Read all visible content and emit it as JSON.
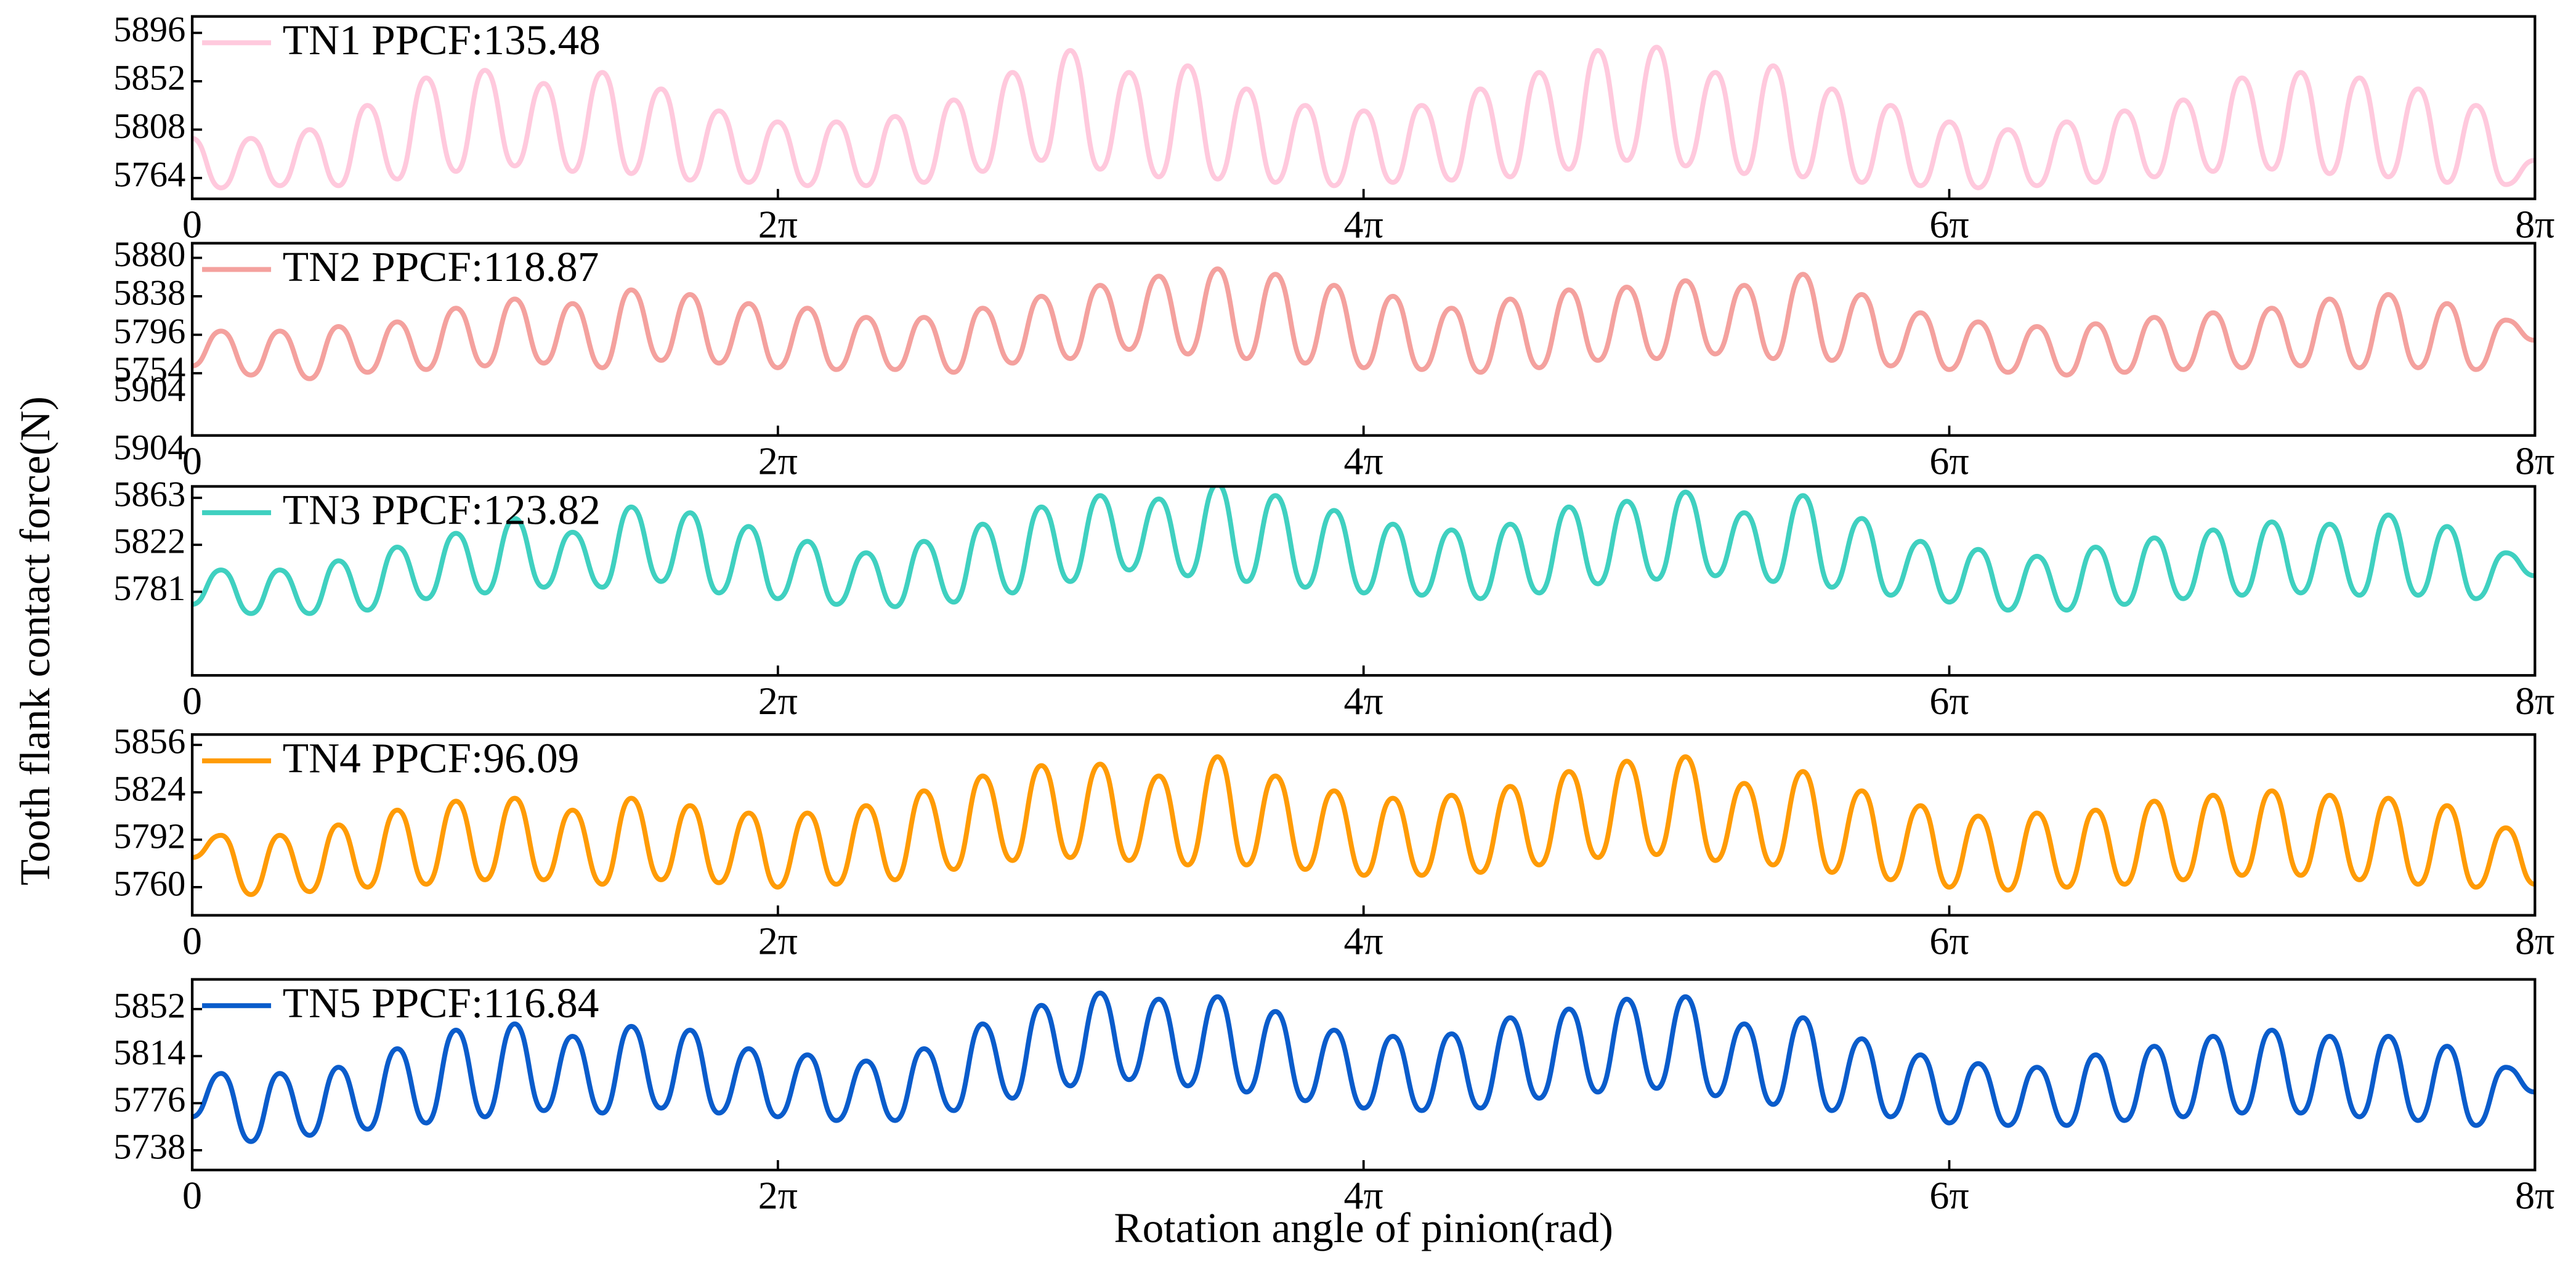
{
  "figure": {
    "ylabel": "Tooth flank contact force(N)",
    "xlabel": "Rotation angle of pinion(rad)"
  },
  "chart_data": [
    {
      "type": "line",
      "x": [
        0,
        0.31,
        0.63,
        0.94,
        1.26,
        1.57,
        1.88,
        2.2,
        2.51,
        2.83,
        3.14,
        3.46,
        3.77,
        4.08,
        4.4,
        4.71,
        5.03,
        5.34,
        5.65,
        5.97,
        6.28,
        6.6,
        6.91,
        7.23,
        7.54,
        7.85,
        8.17,
        8.48,
        8.8,
        9.11,
        9.42,
        9.74,
        10.05,
        10.37,
        10.68,
        11.0,
        11.31,
        11.62,
        11.94,
        12.25,
        12.57,
        12.88,
        13.19,
        13.51,
        13.82,
        14.14,
        14.45,
        14.77,
        15.08,
        15.39,
        15.71,
        16.02,
        16.34,
        16.65,
        16.96,
        17.28,
        17.59,
        17.91,
        18.22,
        18.54,
        18.85,
        19.16,
        19.48,
        19.79,
        20.11,
        20.42,
        20.73,
        21.05,
        21.36,
        21.68,
        21.99,
        22.31,
        22.62,
        22.93,
        23.25,
        23.56,
        23.88,
        24.19,
        24.5,
        24.82,
        25.13
      ],
      "series": [
        {
          "name": "TN1 PPCF:135.48",
          "color": "#ffc9dd",
          "values": [
            5800,
            5755,
            5800,
            5757,
            5808,
            5757,
            5830,
            5763,
            5855,
            5770,
            5862,
            5775,
            5850,
            5770,
            5860,
            5768,
            5845,
            5762,
            5825,
            5760,
            5815,
            5757,
            5815,
            5757,
            5820,
            5760,
            5835,
            5770,
            5860,
            5780,
            5880,
            5772,
            5860,
            5765,
            5866,
            5763,
            5845,
            5760,
            5830,
            5757,
            5825,
            5760,
            5830,
            5762,
            5845,
            5765,
            5860,
            5772,
            5880,
            5780,
            5883,
            5775,
            5860,
            5768,
            5866,
            5765,
            5845,
            5760,
            5830,
            5757,
            5815,
            5755,
            5808,
            5757,
            5815,
            5760,
            5825,
            5765,
            5835,
            5770,
            5855,
            5772,
            5860,
            5768,
            5855,
            5765,
            5845,
            5760,
            5830,
            5758,
            5780
          ]
        }
      ],
      "xlim": [
        0,
        25.1327
      ],
      "xticks": [
        {
          "value": 0,
          "label": "0"
        },
        {
          "value": 6.2832,
          "label": "2π"
        },
        {
          "value": 12.5664,
          "label": "4π"
        },
        {
          "value": 18.8496,
          "label": "6π"
        },
        {
          "value": 25.1327,
          "label": "8π"
        }
      ],
      "ylim": [
        5745,
        5911
      ],
      "yticks": [
        5764,
        5808,
        5852,
        5896
      ]
    },
    {
      "type": "line",
      "x": [
        0,
        0.31,
        0.63,
        0.94,
        1.26,
        1.57,
        1.88,
        2.2,
        2.51,
        2.83,
        3.14,
        3.46,
        3.77,
        4.08,
        4.4,
        4.71,
        5.03,
        5.34,
        5.65,
        5.97,
        6.28,
        6.6,
        6.91,
        7.23,
        7.54,
        7.85,
        8.17,
        8.48,
        8.8,
        9.11,
        9.42,
        9.74,
        10.05,
        10.37,
        10.68,
        11.0,
        11.31,
        11.62,
        11.94,
        12.25,
        12.57,
        12.88,
        13.19,
        13.51,
        13.82,
        14.14,
        14.45,
        14.77,
        15.08,
        15.39,
        15.71,
        16.02,
        16.34,
        16.65,
        16.96,
        17.28,
        17.59,
        17.91,
        18.22,
        18.54,
        18.85,
        19.16,
        19.48,
        19.79,
        20.11,
        20.42,
        20.73,
        21.05,
        21.36,
        21.68,
        21.99,
        22.31,
        22.62,
        22.93,
        23.25,
        23.56,
        23.88,
        24.19,
        24.5,
        24.82,
        25.13
      ],
      "series": [
        {
          "name": "TN2 PPCF:118.87",
          "color": "#f4a19e",
          "values": [
            5762,
            5800,
            5752,
            5800,
            5748,
            5805,
            5755,
            5810,
            5758,
            5825,
            5762,
            5835,
            5765,
            5830,
            5760,
            5845,
            5768,
            5840,
            5765,
            5830,
            5760,
            5825,
            5758,
            5815,
            5758,
            5815,
            5755,
            5825,
            5765,
            5838,
            5770,
            5850,
            5780,
            5860,
            5775,
            5868,
            5770,
            5862,
            5765,
            5850,
            5760,
            5838,
            5758,
            5825,
            5755,
            5835,
            5760,
            5845,
            5768,
            5848,
            5770,
            5855,
            5775,
            5850,
            5770,
            5862,
            5768,
            5840,
            5762,
            5820,
            5758,
            5810,
            5755,
            5805,
            5752,
            5808,
            5755,
            5815,
            5758,
            5820,
            5760,
            5825,
            5762,
            5835,
            5760,
            5840,
            5760,
            5830,
            5758,
            5812,
            5790
          ]
        }
      ],
      "xlim": [
        0,
        25.1327
      ],
      "xticks": [
        {
          "value": 0,
          "label": "0"
        },
        {
          "value": 6.2832,
          "label": "2π"
        },
        {
          "value": 12.5664,
          "label": "4π"
        },
        {
          "value": 18.8496,
          "label": "6π"
        },
        {
          "value": 25.1327,
          "label": "8π"
        }
      ],
      "ylim": [
        5686,
        5896
      ],
      "yticks": [
        5754,
        5796,
        5838,
        5880
      ],
      "annotation": "5904"
    },
    {
      "type": "line",
      "x": [
        0,
        0.31,
        0.63,
        0.94,
        1.26,
        1.57,
        1.88,
        2.2,
        2.51,
        2.83,
        3.14,
        3.46,
        3.77,
        4.08,
        4.4,
        4.71,
        5.03,
        5.34,
        5.65,
        5.97,
        6.28,
        6.6,
        6.91,
        7.23,
        7.54,
        7.85,
        8.17,
        8.48,
        8.8,
        9.11,
        9.42,
        9.74,
        10.05,
        10.37,
        10.68,
        11.0,
        11.31,
        11.62,
        11.94,
        12.25,
        12.57,
        12.88,
        13.19,
        13.51,
        13.82,
        14.14,
        14.45,
        14.77,
        15.08,
        15.39,
        15.71,
        16.02,
        16.34,
        16.65,
        16.96,
        17.28,
        17.59,
        17.91,
        18.22,
        18.54,
        18.85,
        19.16,
        19.48,
        19.79,
        20.11,
        20.42,
        20.73,
        21.05,
        21.36,
        21.68,
        21.99,
        22.31,
        22.62,
        22.93,
        23.25,
        23.56,
        23.88,
        24.19,
        24.5,
        24.82,
        25.13
      ],
      "series": [
        {
          "name": "TN3 PPCF:123.82",
          "color": "#3fd0c0",
          "values": [
            5770,
            5800,
            5762,
            5800,
            5762,
            5808,
            5765,
            5820,
            5775,
            5832,
            5780,
            5845,
            5785,
            5833,
            5785,
            5855,
            5790,
            5850,
            5780,
            5838,
            5775,
            5825,
            5770,
            5815,
            5768,
            5825,
            5772,
            5840,
            5780,
            5855,
            5790,
            5865,
            5800,
            5862,
            5795,
            5875,
            5790,
            5865,
            5785,
            5852,
            5780,
            5840,
            5778,
            5835,
            5775,
            5840,
            5780,
            5855,
            5788,
            5860,
            5792,
            5868,
            5795,
            5850,
            5790,
            5865,
            5785,
            5845,
            5778,
            5825,
            5772,
            5818,
            5765,
            5812,
            5765,
            5820,
            5770,
            5828,
            5775,
            5835,
            5778,
            5842,
            5780,
            5840,
            5778,
            5848,
            5778,
            5838,
            5775,
            5815,
            5795
          ]
        }
      ],
      "xlim": [
        0,
        25.1327
      ],
      "xticks": [
        {
          "value": 0,
          "label": "0"
        },
        {
          "value": 6.2832,
          "label": "2π"
        },
        {
          "value": 12.5664,
          "label": "4π"
        },
        {
          "value": 18.8496,
          "label": "6π"
        },
        {
          "value": 25.1327,
          "label": "8π"
        }
      ],
      "ylim": [
        5708,
        5873
      ],
      "yticks": [
        5781,
        5822,
        5863,
        5904
      ]
    },
    {
      "type": "line",
      "x": [
        0,
        0.31,
        0.63,
        0.94,
        1.26,
        1.57,
        1.88,
        2.2,
        2.51,
        2.83,
        3.14,
        3.46,
        3.77,
        4.08,
        4.4,
        4.71,
        5.03,
        5.34,
        5.65,
        5.97,
        6.28,
        6.6,
        6.91,
        7.23,
        7.54,
        7.85,
        8.17,
        8.48,
        8.8,
        9.11,
        9.42,
        9.74,
        10.05,
        10.37,
        10.68,
        11.0,
        11.31,
        11.62,
        11.94,
        12.25,
        12.57,
        12.88,
        13.19,
        13.51,
        13.82,
        14.14,
        14.45,
        14.77,
        15.08,
        15.39,
        15.71,
        16.02,
        16.34,
        16.65,
        16.96,
        17.28,
        17.59,
        17.91,
        18.22,
        18.54,
        18.85,
        19.16,
        19.48,
        19.79,
        20.11,
        20.42,
        20.73,
        21.05,
        21.36,
        21.68,
        21.99,
        22.31,
        22.62,
        22.93,
        23.25,
        23.56,
        23.88,
        24.19,
        24.5,
        24.82,
        25.13
      ],
      "series": [
        {
          "name": "TN4 PPCF:96.09",
          "color": "#ff9b05",
          "values": [
            5780,
            5795,
            5755,
            5795,
            5757,
            5802,
            5760,
            5812,
            5762,
            5818,
            5765,
            5820,
            5765,
            5812,
            5762,
            5820,
            5765,
            5815,
            5763,
            5810,
            5760,
            5810,
            5762,
            5815,
            5765,
            5825,
            5772,
            5835,
            5778,
            5842,
            5780,
            5843,
            5778,
            5835,
            5775,
            5848,
            5775,
            5835,
            5772,
            5825,
            5768,
            5820,
            5768,
            5822,
            5770,
            5828,
            5775,
            5838,
            5780,
            5845,
            5782,
            5848,
            5778,
            5830,
            5775,
            5838,
            5770,
            5825,
            5765,
            5815,
            5760,
            5808,
            5758,
            5810,
            5760,
            5812,
            5762,
            5818,
            5765,
            5822,
            5768,
            5825,
            5768,
            5822,
            5765,
            5820,
            5762,
            5815,
            5760,
            5800,
            5762
          ]
        }
      ],
      "xlim": [
        0,
        25.1327
      ],
      "xticks": [
        {
          "value": 0,
          "label": "0"
        },
        {
          "value": 6.2832,
          "label": "2π"
        },
        {
          "value": 12.5664,
          "label": "4π"
        },
        {
          "value": 18.8496,
          "label": "6π"
        },
        {
          "value": 25.1327,
          "label": "8π"
        }
      ],
      "ylim": [
        5741,
        5863
      ],
      "yticks": [
        5760,
        5792,
        5824,
        5856
      ]
    },
    {
      "type": "line",
      "x": [
        0,
        0.31,
        0.63,
        0.94,
        1.26,
        1.57,
        1.88,
        2.2,
        2.51,
        2.83,
        3.14,
        3.46,
        3.77,
        4.08,
        4.4,
        4.71,
        5.03,
        5.34,
        5.65,
        5.97,
        6.28,
        6.6,
        6.91,
        7.23,
        7.54,
        7.85,
        8.17,
        8.48,
        8.8,
        9.11,
        9.42,
        9.74,
        10.05,
        10.37,
        10.68,
        11.0,
        11.31,
        11.62,
        11.94,
        12.25,
        12.57,
        12.88,
        13.19,
        13.51,
        13.82,
        14.14,
        14.45,
        14.77,
        15.08,
        15.39,
        15.71,
        16.02,
        16.34,
        16.65,
        16.96,
        17.28,
        17.59,
        17.91,
        18.22,
        18.54,
        18.85,
        19.16,
        19.48,
        19.79,
        20.11,
        20.42,
        20.73,
        21.05,
        21.36,
        21.68,
        21.99,
        22.31,
        22.62,
        22.93,
        23.25,
        23.56,
        23.88,
        24.19,
        24.5,
        24.82,
        25.13
      ],
      "series": [
        {
          "name": "TN5 PPCF:116.84",
          "color": "#0a5ccb",
          "values": [
            5765,
            5800,
            5745,
            5800,
            5750,
            5805,
            5755,
            5820,
            5760,
            5835,
            5765,
            5840,
            5770,
            5830,
            5768,
            5838,
            5772,
            5835,
            5768,
            5820,
            5765,
            5815,
            5762,
            5810,
            5762,
            5820,
            5770,
            5840,
            5780,
            5855,
            5790,
            5865,
            5795,
            5860,
            5790,
            5862,
            5785,
            5850,
            5778,
            5835,
            5772,
            5830,
            5770,
            5832,
            5772,
            5845,
            5780,
            5852,
            5785,
            5860,
            5788,
            5862,
            5782,
            5840,
            5775,
            5845,
            5770,
            5828,
            5765,
            5815,
            5760,
            5808,
            5758,
            5805,
            5758,
            5815,
            5762,
            5822,
            5765,
            5830,
            5768,
            5835,
            5768,
            5830,
            5765,
            5830,
            5762,
            5822,
            5758,
            5805,
            5785
          ]
        }
      ],
      "xlim": [
        0,
        25.1327
      ],
      "xticks": [
        {
          "value": 0,
          "label": "0"
        },
        {
          "value": 6.2832,
          "label": "2π"
        },
        {
          "value": 12.5664,
          "label": "4π"
        },
        {
          "value": 18.8496,
          "label": "6π"
        },
        {
          "value": 25.1327,
          "label": "8π"
        }
      ],
      "ylim": [
        5722,
        5876
      ],
      "yticks": [
        5738,
        5776,
        5814,
        5852
      ]
    }
  ]
}
